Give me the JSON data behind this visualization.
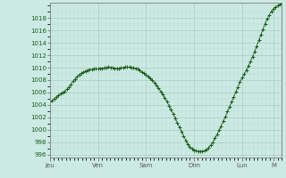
{
  "bg_color": "#cceae4",
  "plot_bg_color": "#cceae4",
  "line_color": "#1a5c1a",
  "marker": "+",
  "marker_size": 2.5,
  "line_width": 0.6,
  "grid_major_color": "#aac8c0",
  "grid_minor_color": "#bdd8d0",
  "tick_label_color": "#1a5c1a",
  "ylim": [
    995.5,
    1020.5
  ],
  "yticks": [
    996,
    998,
    1000,
    1002,
    1004,
    1006,
    1008,
    1010,
    1012,
    1014,
    1016,
    1018
  ],
  "xtick_labels": [
    "Jeu",
    "Ven",
    "Sam",
    "Dim",
    "Lun",
    "M"
  ],
  "xtick_positions": [
    0,
    24,
    48,
    72,
    96,
    112
  ],
  "total_hours": 116,
  "pressure_data": [
    1004.5,
    1004.7,
    1005.0,
    1005.3,
    1005.5,
    1005.8,
    1006.0,
    1006.2,
    1006.5,
    1006.9,
    1007.3,
    1007.8,
    1008.2,
    1008.6,
    1008.9,
    1009.1,
    1009.3,
    1009.5,
    1009.6,
    1009.7,
    1009.7,
    1009.8,
    1009.8,
    1009.8,
    1009.9,
    1009.9,
    1010.0,
    1010.0,
    1010.1,
    1010.0,
    1010.0,
    1009.9,
    1009.9,
    1009.9,
    1010.0,
    1010.0,
    1010.1,
    1010.1,
    1010.1,
    1010.0,
    1010.0,
    1009.9,
    1009.8,
    1009.6,
    1009.3,
    1009.1,
    1008.8,
    1008.6,
    1008.3,
    1008.0,
    1007.6,
    1007.2,
    1006.7,
    1006.2,
    1005.7,
    1005.1,
    1004.5,
    1003.9,
    1003.2,
    1002.5,
    1001.8,
    1001.1,
    1000.4,
    999.7,
    999.0,
    998.3,
    997.7,
    997.2,
    996.9,
    996.7,
    996.6,
    996.5,
    996.5,
    996.5,
    996.6,
    996.8,
    997.1,
    997.5,
    998.0,
    998.6,
    999.2,
    999.9,
    1000.6,
    1001.4,
    1002.1,
    1002.9,
    1003.7,
    1004.5,
    1005.3,
    1006.1,
    1006.9,
    1007.7,
    1008.4,
    1009.0,
    1009.6,
    1010.3,
    1011.0,
    1011.8,
    1012.6,
    1013.5,
    1014.4,
    1015.3,
    1016.2,
    1017.1,
    1017.9,
    1018.5,
    1019.1,
    1019.5,
    1019.8,
    1020.0,
    1020.2,
    1020.3
  ]
}
